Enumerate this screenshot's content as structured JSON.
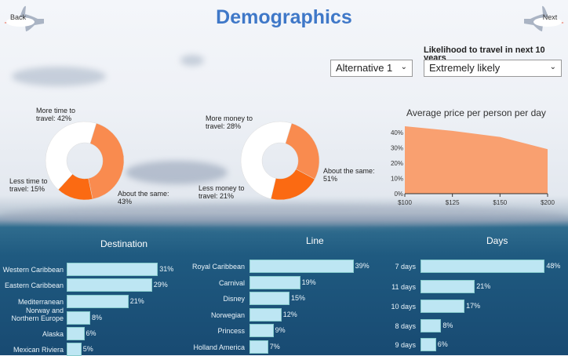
{
  "header": {
    "title": "Demographics",
    "back_label": "Back",
    "next_label": "Next"
  },
  "filters": {
    "alternative": "Alternative 1",
    "likelihood_label": "Likelihood to travel in next 10 years",
    "likelihood": "Extremely likely"
  },
  "colors": {
    "light_orange": "#f98b4f",
    "dark_orange": "#fb6a12",
    "white": "#ffffff",
    "area": "#f9a070",
    "bar": "#bde6f3",
    "title": "#3f78c8"
  },
  "chart_data": [
    {
      "type": "pie",
      "donut": true,
      "labels": [
        "More time to travel: 42%",
        "Less time to travel: 15%",
        "About the same: 43%"
      ],
      "values": [
        42,
        15,
        43
      ],
      "colors": [
        "#f98b4f",
        "#fb6a12",
        "#ffffff"
      ]
    },
    {
      "type": "pie",
      "donut": true,
      "labels": [
        "More money to travel: 28%",
        "Less money to travel: 21%",
        "About the same: 51%"
      ],
      "values": [
        28,
        21,
        51
      ],
      "colors": [
        "#f98b4f",
        "#fb6a12",
        "#ffffff"
      ]
    },
    {
      "type": "area",
      "title": "Average price per person per day",
      "categories": [
        "$100",
        "$125",
        "$150",
        "$200"
      ],
      "values": [
        44,
        41,
        37,
        29
      ],
      "yticks": [
        "0%",
        "10%",
        "20%",
        "30%",
        "40%"
      ],
      "ylim": [
        0,
        45
      ]
    },
    {
      "type": "bar",
      "orientation": "horizontal",
      "title": "Destination",
      "categories": [
        "Western Caribbean",
        "Eastern Caribbean",
        "Mediterranean",
        "Norway and Northern Europe",
        "Alaska",
        "Mexican Riviera"
      ],
      "values": [
        31,
        29,
        21,
        8,
        6,
        5
      ],
      "labels": [
        "31%",
        "29%",
        "21%",
        "8%",
        "6%",
        "5%"
      ]
    },
    {
      "type": "bar",
      "orientation": "horizontal",
      "title": "Line",
      "categories": [
        "Royal Caribbean",
        "Carnival",
        "Disney",
        "Norwegian",
        "Princess",
        "Holland America"
      ],
      "values": [
        39,
        19,
        15,
        12,
        9,
        7
      ],
      "labels": [
        "39%",
        "19%",
        "15%",
        "12%",
        "9%",
        "7%"
      ]
    },
    {
      "type": "bar",
      "orientation": "horizontal",
      "title": "Days",
      "categories": [
        "7 days",
        "11 days",
        "10 days",
        "8 days",
        "9 days"
      ],
      "values": [
        48,
        21,
        17,
        8,
        6
      ],
      "labels": [
        "48%",
        "21%",
        "17%",
        "8%",
        "6%"
      ]
    }
  ]
}
